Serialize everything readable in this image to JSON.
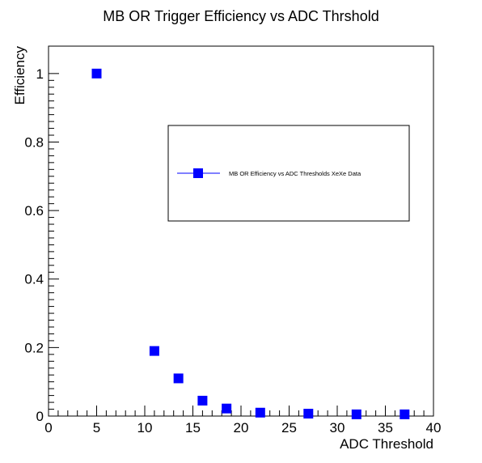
{
  "chart_data": {
    "type": "scatter",
    "title": "MB OR Trigger Efficiency vs ADC Thrshold",
    "xlabel": "ADC Threshold",
    "ylabel": "Efficiency",
    "xlim": [
      0,
      40
    ],
    "ylim": [
      0,
      1.08
    ],
    "x_ticks": [
      0,
      5,
      10,
      15,
      20,
      25,
      30,
      35,
      40
    ],
    "y_ticks": [
      0,
      0.2,
      0.4,
      0.6,
      0.8,
      1
    ],
    "x_tick_labels": [
      "0",
      "5",
      "10",
      "15",
      "20",
      "25",
      "30",
      "35",
      "40"
    ],
    "y_tick_labels": [
      "0",
      "0.2",
      "0.4",
      "0.6",
      "0.8",
      "1"
    ],
    "grid": false,
    "legend_position": "center-right",
    "series": [
      {
        "name": "MB OR Efficiency vs ADC Thresholds XeXe Data",
        "color": "#0000ff",
        "marker": "square",
        "x": [
          5,
          11,
          13.5,
          16,
          18.5,
          22,
          27,
          32,
          37
        ],
        "y": [
          1.0,
          0.19,
          0.11,
          0.045,
          0.022,
          0.01,
          0.007,
          0.005,
          0.005
        ]
      }
    ]
  }
}
